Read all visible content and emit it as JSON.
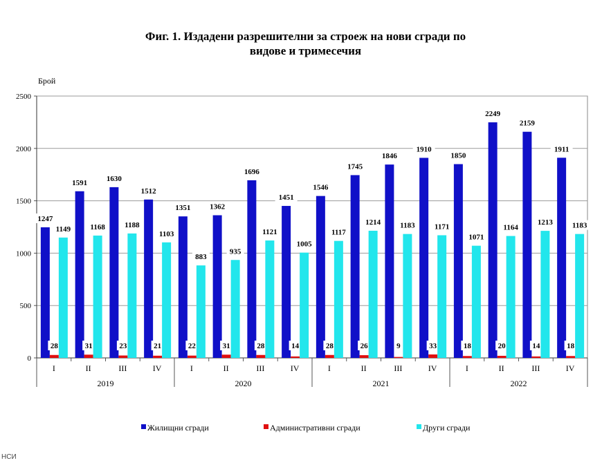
{
  "chart_data": {
    "type": "bar",
    "title_line1": "Фиг. 1. Издадени разрешителни за строеж на нови сгради по",
    "title_line2": "видове и тримесечия",
    "ylabel": "Брой",
    "ylim": [
      0,
      2500
    ],
    "yticks": [
      0,
      500,
      1000,
      1500,
      2000,
      2500
    ],
    "grid": true,
    "legend_position": "bottom",
    "categories": [
      "I",
      "II",
      "III",
      "IV",
      "I",
      "II",
      "III",
      "IV",
      "I",
      "II",
      "III",
      "IV",
      "I",
      "II",
      "III",
      "IV"
    ],
    "years": [
      "2019",
      "2020",
      "2021",
      "2022"
    ],
    "series": [
      {
        "name": "Жилищни сгради",
        "color": "#1010c8",
        "values": [
          1247,
          1591,
          1630,
          1512,
          1351,
          1362,
          1696,
          1451,
          1546,
          1745,
          1846,
          1910,
          1850,
          2249,
          2159,
          1911
        ]
      },
      {
        "name": "Административни сгради",
        "color": "#e01010",
        "values": [
          28,
          31,
          23,
          21,
          22,
          31,
          28,
          14,
          28,
          26,
          9,
          33,
          18,
          20,
          14,
          18
        ]
      },
      {
        "name": "Други сгради",
        "color": "#22e6ec",
        "values": [
          1149,
          1168,
          1188,
          1103,
          883,
          935,
          1121,
          1005,
          1117,
          1214,
          1183,
          1171,
          1071,
          1164,
          1213,
          1183
        ]
      }
    ]
  },
  "footer": "НСИ"
}
